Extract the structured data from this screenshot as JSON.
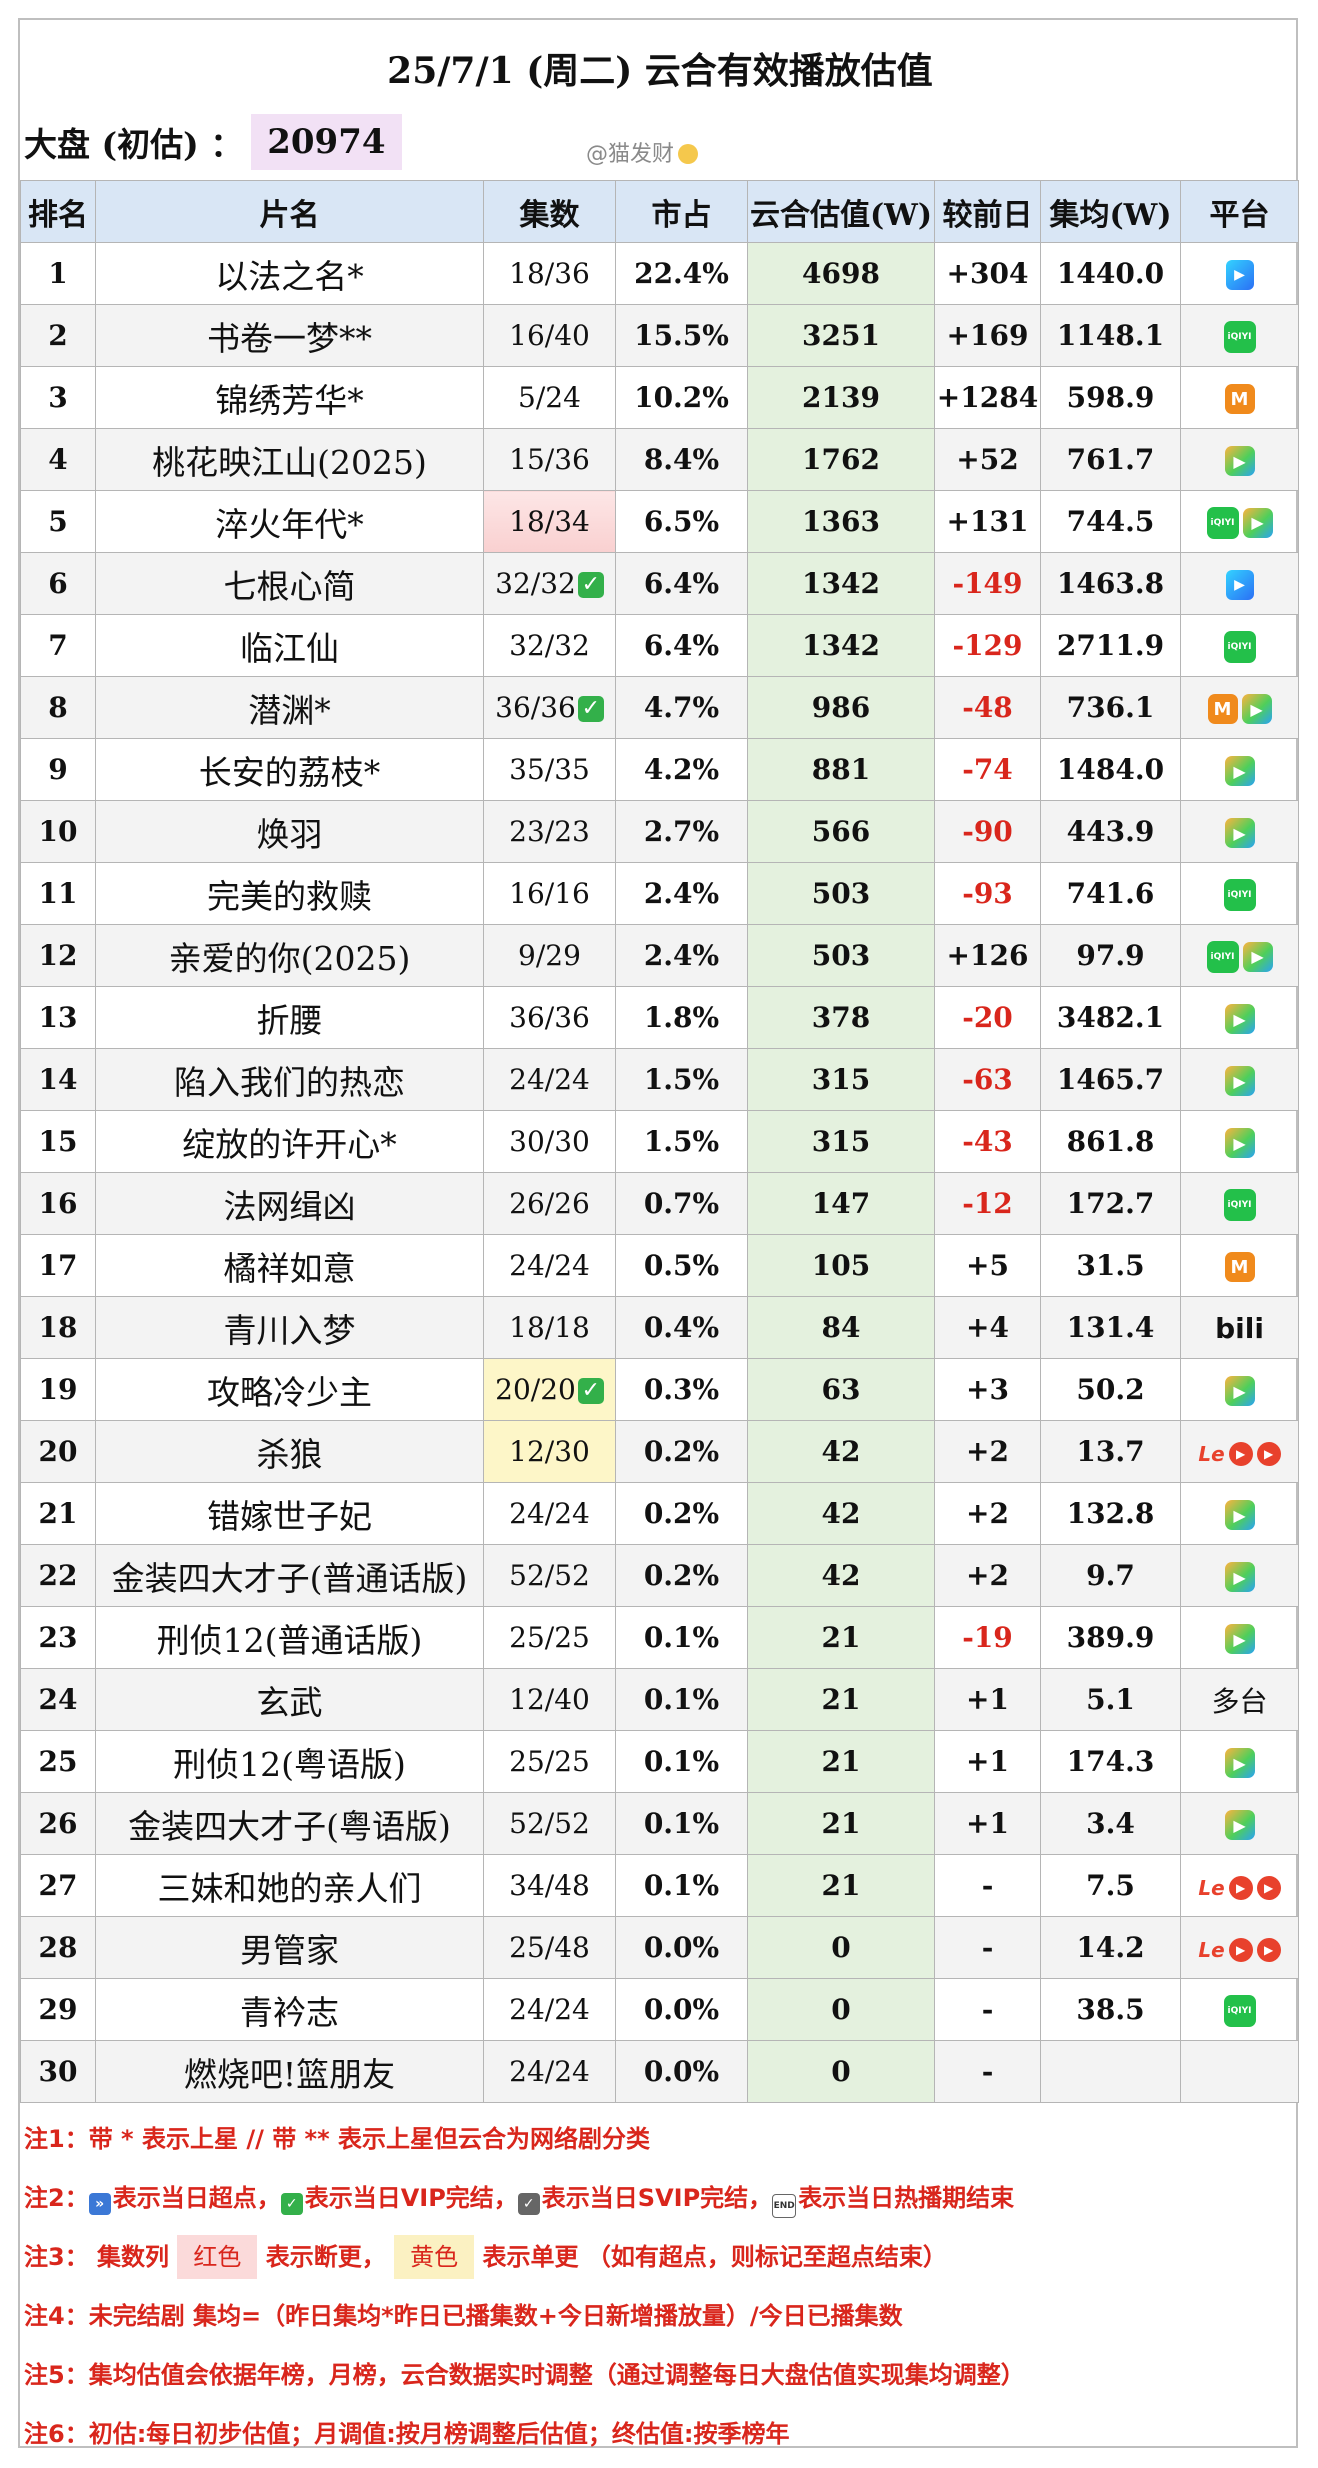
{
  "title": "25/7/1 (周二) 云合有效播放估值",
  "market": {
    "label": "大盘 (初估) ：",
    "value": "20974"
  },
  "watermark": "@猫发财",
  "headers": [
    "排名",
    "片名",
    "集数",
    "市占",
    "云合估值(W)",
    "较前日",
    "集均(W)",
    "平台"
  ],
  "rows": [
    {
      "rank": "1",
      "title": "以法之名*",
      "episodes": "18/36",
      "share": "22.4%",
      "estimate": "4698",
      "change": "+304",
      "per_episode": "1440.0",
      "platforms": [
        "youku"
      ]
    },
    {
      "rank": "2",
      "title": "书卷一梦**",
      "episodes": "16/40",
      "share": "15.5%",
      "estimate": "3251",
      "change": "+169",
      "per_episode": "1148.1",
      "platforms": [
        "iqiyi"
      ]
    },
    {
      "rank": "3",
      "title": "锦绣芳华*",
      "episodes": "5/24",
      "share": "10.2%",
      "estimate": "2139",
      "change": "+1284",
      "per_episode": "598.9",
      "platforms": [
        "mango"
      ]
    },
    {
      "rank": "4",
      "title": "桃花映江山(2025)",
      "episodes": "15/36",
      "share": "8.4%",
      "estimate": "1762",
      "change": "+52",
      "per_episode": "761.7",
      "platforms": [
        "tencent"
      ]
    },
    {
      "rank": "5",
      "title": "淬火年代*",
      "episodes": "18/34",
      "share": "6.5%",
      "estimate": "1363",
      "change": "+131",
      "per_episode": "744.5",
      "platforms": [
        "iqiyi",
        "tencent"
      ],
      "episodes_color": "red"
    },
    {
      "rank": "6",
      "title": "七根心简",
      "episodes": "32/32",
      "episodes_check": true,
      "share": "6.4%",
      "estimate": "1342",
      "change": "-149",
      "per_episode": "1463.8",
      "platforms": [
        "youku"
      ]
    },
    {
      "rank": "7",
      "title": "临江仙",
      "episodes": "32/32",
      "share": "6.4%",
      "estimate": "1342",
      "change": "-129",
      "per_episode": "2711.9",
      "platforms": [
        "iqiyi"
      ]
    },
    {
      "rank": "8",
      "title": "潜渊*",
      "episodes": "36/36",
      "episodes_check": true,
      "share": "4.7%",
      "estimate": "986",
      "change": "-48",
      "per_episode": "736.1",
      "platforms": [
        "mango",
        "tencent"
      ]
    },
    {
      "rank": "9",
      "title": "长安的荔枝*",
      "episodes": "35/35",
      "share": "4.2%",
      "estimate": "881",
      "change": "-74",
      "per_episode": "1484.0",
      "platforms": [
        "tencent"
      ]
    },
    {
      "rank": "10",
      "title": "焕羽",
      "episodes": "23/23",
      "share": "2.7%",
      "estimate": "566",
      "change": "-90",
      "per_episode": "443.9",
      "platforms": [
        "tencent"
      ]
    },
    {
      "rank": "11",
      "title": "完美的救赎",
      "episodes": "16/16",
      "share": "2.4%",
      "estimate": "503",
      "change": "-93",
      "per_episode": "741.6",
      "platforms": [
        "iqiyi"
      ]
    },
    {
      "rank": "12",
      "title": "亲爱的你(2025)",
      "episodes": "9/29",
      "share": "2.4%",
      "estimate": "503",
      "change": "+126",
      "per_episode": "97.9",
      "platforms": [
        "iqiyi",
        "tencent"
      ]
    },
    {
      "rank": "13",
      "title": "折腰",
      "episodes": "36/36",
      "share": "1.8%",
      "estimate": "378",
      "change": "-20",
      "per_episode": "3482.1",
      "platforms": [
        "tencent"
      ]
    },
    {
      "rank": "14",
      "title": "陷入我们的热恋",
      "episodes": "24/24",
      "share": "1.5%",
      "estimate": "315",
      "change": "-63",
      "per_episode": "1465.7",
      "platforms": [
        "tencent"
      ]
    },
    {
      "rank": "15",
      "title": "绽放的许开心*",
      "episodes": "30/30",
      "share": "1.5%",
      "estimate": "315",
      "change": "-43",
      "per_episode": "861.8",
      "platforms": [
        "tencent"
      ]
    },
    {
      "rank": "16",
      "title": "法网缉凶",
      "episodes": "26/26",
      "share": "0.7%",
      "estimate": "147",
      "change": "-12",
      "per_episode": "172.7",
      "platforms": [
        "iqiyi"
      ]
    },
    {
      "rank": "17",
      "title": "橘祥如意",
      "episodes": "24/24",
      "share": "0.5%",
      "estimate": "105",
      "change": "+5",
      "per_episode": "31.5",
      "platforms": [
        "mango"
      ]
    },
    {
      "rank": "18",
      "title": "青川入梦",
      "episodes": "18/18",
      "share": "0.4%",
      "estimate": "84",
      "change": "+4",
      "per_episode": "131.4",
      "platforms": [
        "bilibili"
      ]
    },
    {
      "rank": "19",
      "title": "攻略冷少主",
      "episodes": "20/20",
      "episodes_check": true,
      "episodes_color": "yellow",
      "share": "0.3%",
      "estimate": "63",
      "change": "+3",
      "per_episode": "50.2",
      "platforms": [
        "tencent"
      ]
    },
    {
      "rank": "20",
      "title": "杀狼",
      "episodes": "12/30",
      "episodes_color": "yellow",
      "share": "0.2%",
      "estimate": "42",
      "change": "+2",
      "per_episode": "13.7",
      "platforms": [
        "le",
        "round",
        "round"
      ]
    },
    {
      "rank": "21",
      "title": "错嫁世子妃",
      "episodes": "24/24",
      "share": "0.2%",
      "estimate": "42",
      "change": "+2",
      "per_episode": "132.8",
      "platforms": [
        "tencent"
      ]
    },
    {
      "rank": "22",
      "title": "金装四大才子(普通话版)",
      "episodes": "52/52",
      "share": "0.2%",
      "estimate": "42",
      "change": "+2",
      "per_episode": "9.7",
      "platforms": [
        "tencent"
      ]
    },
    {
      "rank": "23",
      "title": "刑侦12(普通话版)",
      "episodes": "25/25",
      "share": "0.1%",
      "estimate": "21",
      "change": "-19",
      "per_episode": "389.9",
      "platforms": [
        "tencent"
      ]
    },
    {
      "rank": "24",
      "title": "玄武",
      "episodes": "12/40",
      "share": "0.1%",
      "estimate": "21",
      "change": "+1",
      "per_episode": "5.1",
      "platforms": [
        "text:多台"
      ]
    },
    {
      "rank": "25",
      "title": "刑侦12(粤语版)",
      "episodes": "25/25",
      "share": "0.1%",
      "estimate": "21",
      "change": "+1",
      "per_episode": "174.3",
      "platforms": [
        "tencent"
      ]
    },
    {
      "rank": "26",
      "title": "金装四大才子(粤语版)",
      "episodes": "52/52",
      "share": "0.1%",
      "estimate": "21",
      "change": "+1",
      "per_episode": "3.4",
      "platforms": [
        "tencent"
      ]
    },
    {
      "rank": "27",
      "title": "三妹和她的亲人们",
      "episodes": "34/48",
      "share": "0.1%",
      "estimate": "21",
      "change": "-",
      "per_episode": "7.5",
      "platforms": [
        "le",
        "round",
        "round"
      ]
    },
    {
      "rank": "28",
      "title": "男管家",
      "episodes": "25/48",
      "share": "0.0%",
      "estimate": "0",
      "change": "-",
      "per_episode": "14.2",
      "platforms": [
        "le",
        "round",
        "round"
      ]
    },
    {
      "rank": "29",
      "title": "青衿志",
      "episodes": "24/24",
      "share": "0.0%",
      "estimate": "0",
      "change": "-",
      "per_episode": "38.5",
      "platforms": [
        "iqiyi"
      ]
    },
    {
      "rank": "30",
      "title": "燃烧吧!篮朋友",
      "episodes": "24/24",
      "share": "0.0%",
      "estimate": "0",
      "change": "-",
      "per_episode": "",
      "platforms": []
    }
  ],
  "notes": {
    "n1": "注1：带 * 表示上星 // 带 ** 表示上星但云合为网络剧分类",
    "n2_prefix": "注2：",
    "n2_a": "表示当日超点，",
    "n2_b": "表示当日VIP完结，",
    "n2_c": "表示当日SVIP完结，",
    "n2_d": "表示当日热播期结束",
    "n3_prefix": "注3：  集数列",
    "n3_red": "红色",
    "n3_mid": "表示断更，",
    "n3_yellow": "黄色",
    "n3_end": "表示单更 （如有超点，则标记至超点结束）",
    "n4": "注4：未完结剧 集均=（昨日集均*昨日已播集数+今日新增播放量）/今日已播集数",
    "n5": "注5：集均估值会依据年榜，月榜，云合数据实时调整（通过调整每日大盘估值实现集均调整）",
    "n6": "注6：初估:每日初步估值；月调值:按月榜调整后估值；终估值:按季榜年"
  },
  "colors": {
    "header_bg": "#d9e6f5",
    "estimate_col_bg": "#e4f1de",
    "negative": "#d9261c",
    "total_bg": "#f2e1f5"
  },
  "platform_icons": {
    "youku": "youku-icon",
    "iqiyi": "iqiyi-icon",
    "mango": "mango-tv-icon",
    "tencent": "tencent-video-icon",
    "bilibili": "bilibili-icon",
    "le": "letv-icon",
    "round": "play-circle-icon"
  }
}
